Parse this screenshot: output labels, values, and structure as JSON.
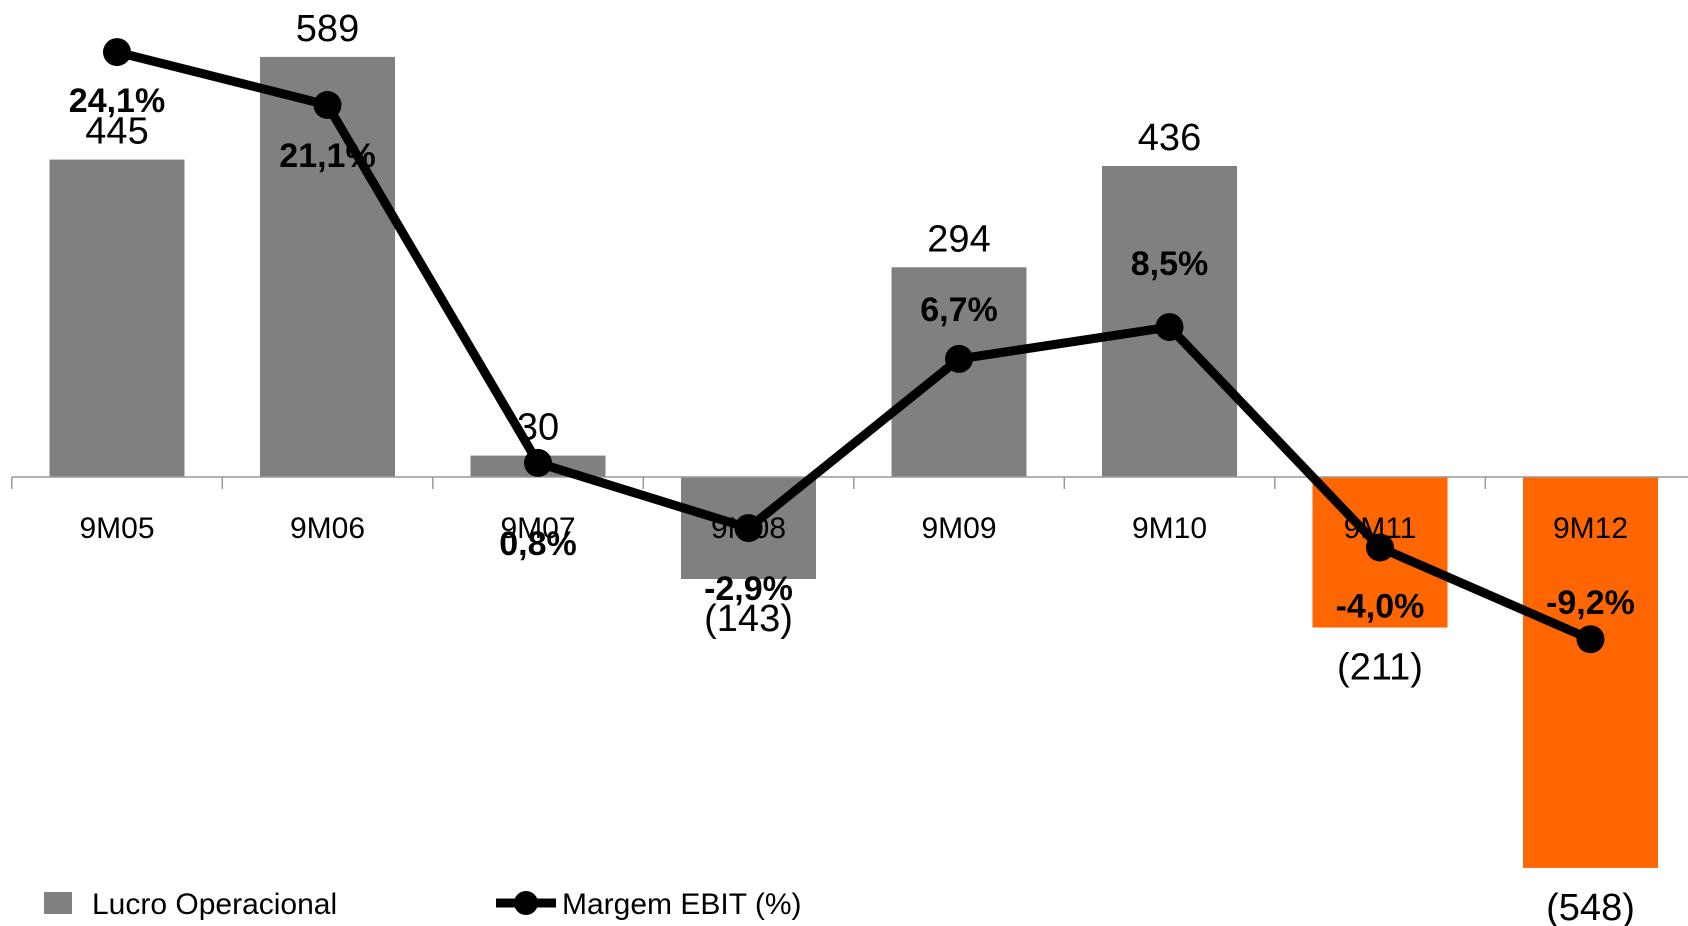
{
  "chart_data": {
    "type": "bar",
    "categories": [
      "9M05",
      "9M06",
      "9M07",
      "9M08",
      "9M09",
      "9M10",
      "9M11",
      "9M12"
    ],
    "series": [
      {
        "name": "Lucro Operacional",
        "chart_type": "bar",
        "values": [
          445,
          589,
          30,
          -143,
          294,
          436,
          -211,
          -548
        ],
        "value_labels": [
          "445",
          "589",
          "30",
          "(143)",
          "294",
          "436",
          "(211)",
          "(548)"
        ],
        "colors": [
          "#808080",
          "#808080",
          "#808080",
          "#808080",
          "#808080",
          "#808080",
          "#ff6600",
          "#ff6600"
        ]
      },
      {
        "name": "Margem EBIT (%)",
        "chart_type": "line",
        "values": [
          24.1,
          21.1,
          0.8,
          -2.9,
          6.7,
          8.5,
          -4.0,
          -9.2
        ],
        "value_labels": [
          "24,1%",
          "21,1%",
          "0,8%",
          "-2,9%",
          "6,7%",
          "8,5%",
          "-4,0%",
          "-9,2%"
        ],
        "color": "#000000"
      }
    ],
    "ylim_bars": [
      -548,
      589
    ],
    "legend_position": "bottom-left",
    "grid": false
  }
}
